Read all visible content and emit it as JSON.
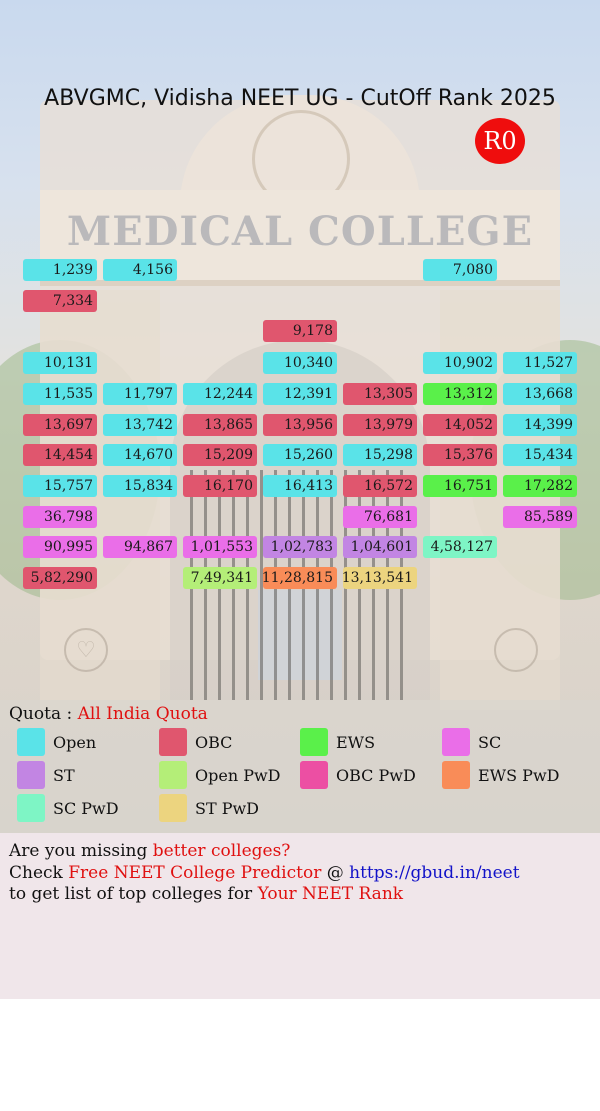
{
  "title": "ABVGMC, Vidisha NEET UG - CutOff Rank 2025",
  "round_badge": "R0",
  "background_sign": "MEDICAL COLLEGE",
  "colors": {
    "Open": "#5ae3e8",
    "OBC": "#e0566e",
    "EWS": "#5af04a",
    "SC": "#ea6ee8",
    "ST": "#c285e3",
    "Open PwD": "#b4ee78",
    "OBC PwD": "#ec4fa3",
    "EWS PwD": "#f98c58",
    "SC PwD": "#7ef5c5",
    "ST PwD": "#ecd47f"
  },
  "grid_columns": 7,
  "grid_rows": [
    [
      "1,239:Open",
      "4,156:Open",
      "",
      "",
      "",
      "7,080:Open",
      ""
    ],
    [
      "7,334:OBC",
      "",
      "",
      "",
      "",
      "",
      ""
    ],
    [
      "",
      "",
      "",
      "9,178:OBC",
      "",
      "",
      ""
    ],
    [
      "10,131:Open",
      "",
      "",
      "10,340:Open",
      "",
      "10,902:Open",
      "11,527:Open"
    ],
    [
      "11,535:Open",
      "11,797:Open",
      "12,244:Open",
      "12,391:Open",
      "13,305:OBC",
      "13,312:EWS",
      "13,668:Open"
    ],
    [
      "13,697:OBC",
      "13,742:Open",
      "13,865:OBC",
      "13,956:OBC",
      "13,979:OBC",
      "14,052:OBC",
      "14,399:Open"
    ],
    [
      "14,454:OBC",
      "14,670:Open",
      "15,209:OBC",
      "15,260:Open",
      "15,298:Open",
      "15,376:OBC",
      "15,434:Open"
    ],
    [
      "15,757:Open",
      "15,834:Open",
      "16,170:OBC",
      "16,413:Open",
      "16,572:OBC",
      "16,751:EWS",
      "17,282:EWS"
    ],
    [
      "36,798:SC",
      "",
      "",
      "",
      "76,681:SC",
      "",
      "85,589:SC"
    ],
    [
      "90,995:SC",
      "94,867:SC",
      "1,01,553:SC",
      "1,02,783:ST",
      "1,04,601:ST",
      "4,58,127:SC PwD",
      ""
    ],
    [
      "5,82,290:OBC",
      "",
      "7,49,341:Open PwD",
      "11,28,815:EWS PwD",
      "13,13,541:ST PwD",
      "",
      ""
    ]
  ],
  "quota_label": "Quota :",
  "quota_value": "All India Quota",
  "legend": [
    "Open",
    "OBC",
    "EWS",
    "SC",
    "ST",
    "Open PwD",
    "OBC PwD",
    "EWS PwD",
    "SC PwD",
    "ST PwD"
  ],
  "footer": {
    "line1_text": "Are you missing ",
    "line1_highlight": "better colleges?",
    "line2_text": "Check ",
    "line2_highlight": "Free NEET College Predictor",
    "line2_at": " @ ",
    "line2_link": "https://gbud.in/neet",
    "line3_text": "to get list of top colleges for ",
    "line3_highlight": "Your NEET Rank"
  }
}
